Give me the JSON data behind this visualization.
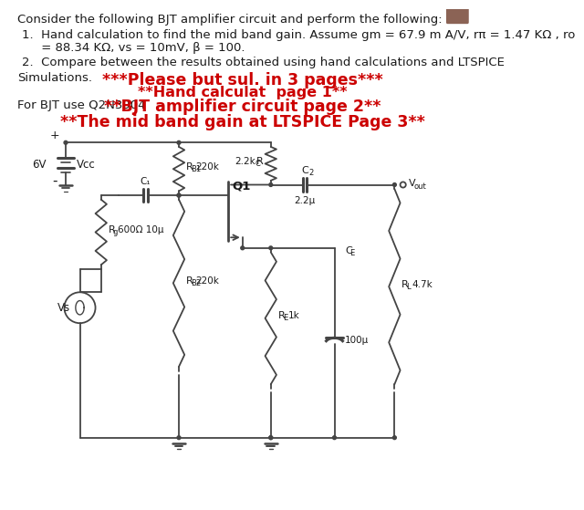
{
  "title_text": "Consider the following BJT amplifier circuit and perform the following:",
  "item1_line1": "1.  Hand calculation to find the mid band gain. Assume gm = 67.9 m A/V, rπ = 1.47 KΩ , ro",
  "item1_line2": "     = 88.34 KΩ, vs = 10mV, β = 100.",
  "item2_line1": "2.  Compare between the results obtained using hand calculations and LTSPICE",
  "simulations_label": "Simulations.",
  "red_line1": "***Please but sul. in 3 pages***",
  "red_line2": "**Hand calculat  page 1**",
  "red_line3": "**BJT amplifier circuit page 2**",
  "red_line4": "**The mid band gain at LTSPICE Page 3**",
  "bjt_label": "For BJT use Q2N3904",
  "red_color": "#cc0000",
  "black_color": "#1a1a1a",
  "circuit_color": "#444444",
  "chegg_brown": "#8B6355"
}
